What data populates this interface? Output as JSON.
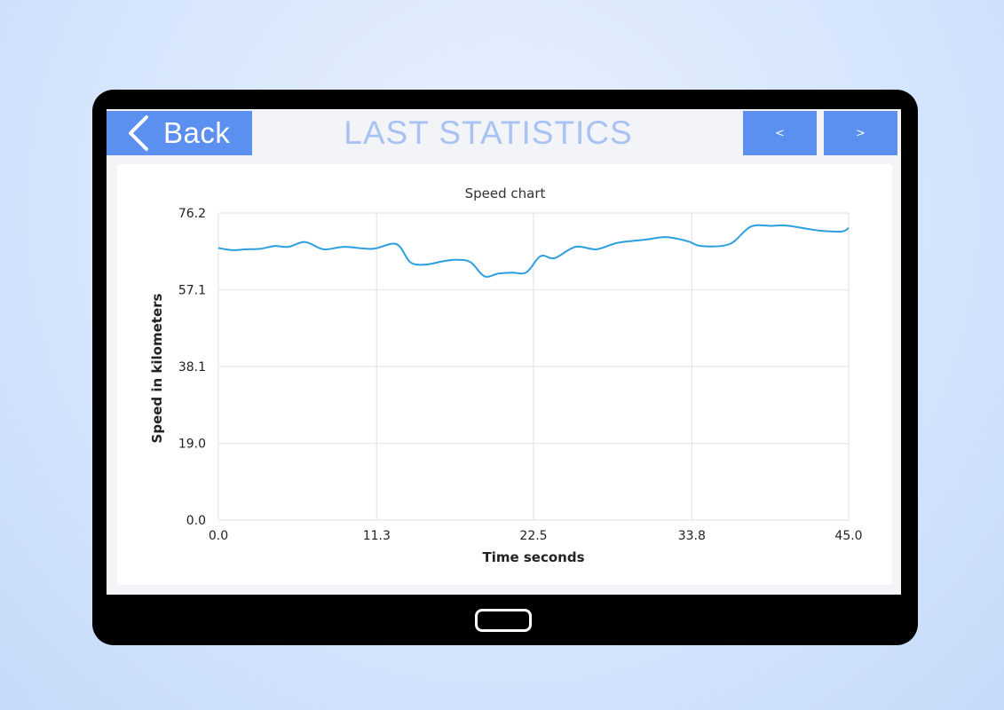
{
  "header": {
    "back_label": "Back",
    "title": "LAST STATISTICS",
    "prev_label": "<",
    "next_label": ">"
  },
  "colors": {
    "accent": "#5b8ff0",
    "title": "#a9c2f4",
    "line": "#2b9fe0",
    "grid": "#e2e2e2"
  },
  "icons": {
    "back": "chevron-left-icon",
    "home": "home-button"
  },
  "chart_data": {
    "type": "line",
    "title": "Speed chart",
    "xlabel": "Time seconds",
    "ylabel": "Speed in kilometers",
    "xlim": [
      0.0,
      45.0
    ],
    "ylim": [
      0.0,
      76.2
    ],
    "x_ticks": [
      "0.0",
      "11.3",
      "22.5",
      "33.8",
      "45.0"
    ],
    "y_ticks": [
      "0.0",
      "19.0",
      "38.1",
      "57.1",
      "76.2"
    ],
    "grid": true,
    "series": [
      {
        "values": [
          [
            0.0,
            67.5
          ],
          [
            1.0,
            67.0
          ],
          [
            2.0,
            67.2
          ],
          [
            3.0,
            67.3
          ],
          [
            4.0,
            68.0
          ],
          [
            5.0,
            67.8
          ],
          [
            6.2,
            69.0
          ],
          [
            7.5,
            67.2
          ],
          [
            9.0,
            67.8
          ],
          [
            11.0,
            67.3
          ],
          [
            12.7,
            68.5
          ],
          [
            13.7,
            64.0
          ],
          [
            14.8,
            63.4
          ],
          [
            16.0,
            64.2
          ],
          [
            17.0,
            64.6
          ],
          [
            18.0,
            64.0
          ],
          [
            19.0,
            60.5
          ],
          [
            20.0,
            61.2
          ],
          [
            21.0,
            61.4
          ],
          [
            22.0,
            61.5
          ],
          [
            23.0,
            65.5
          ],
          [
            24.0,
            65.0
          ],
          [
            25.5,
            67.8
          ],
          [
            27.0,
            67.2
          ],
          [
            28.5,
            68.8
          ],
          [
            30.5,
            69.6
          ],
          [
            32.0,
            70.2
          ],
          [
            33.5,
            69.2
          ],
          [
            34.5,
            68.0
          ],
          [
            36.5,
            68.5
          ],
          [
            38.0,
            72.8
          ],
          [
            39.5,
            73.0
          ],
          [
            40.5,
            73.1
          ],
          [
            42.0,
            72.3
          ],
          [
            43.0,
            71.8
          ],
          [
            44.5,
            71.6
          ],
          [
            45.0,
            72.5
          ]
        ]
      }
    ]
  }
}
